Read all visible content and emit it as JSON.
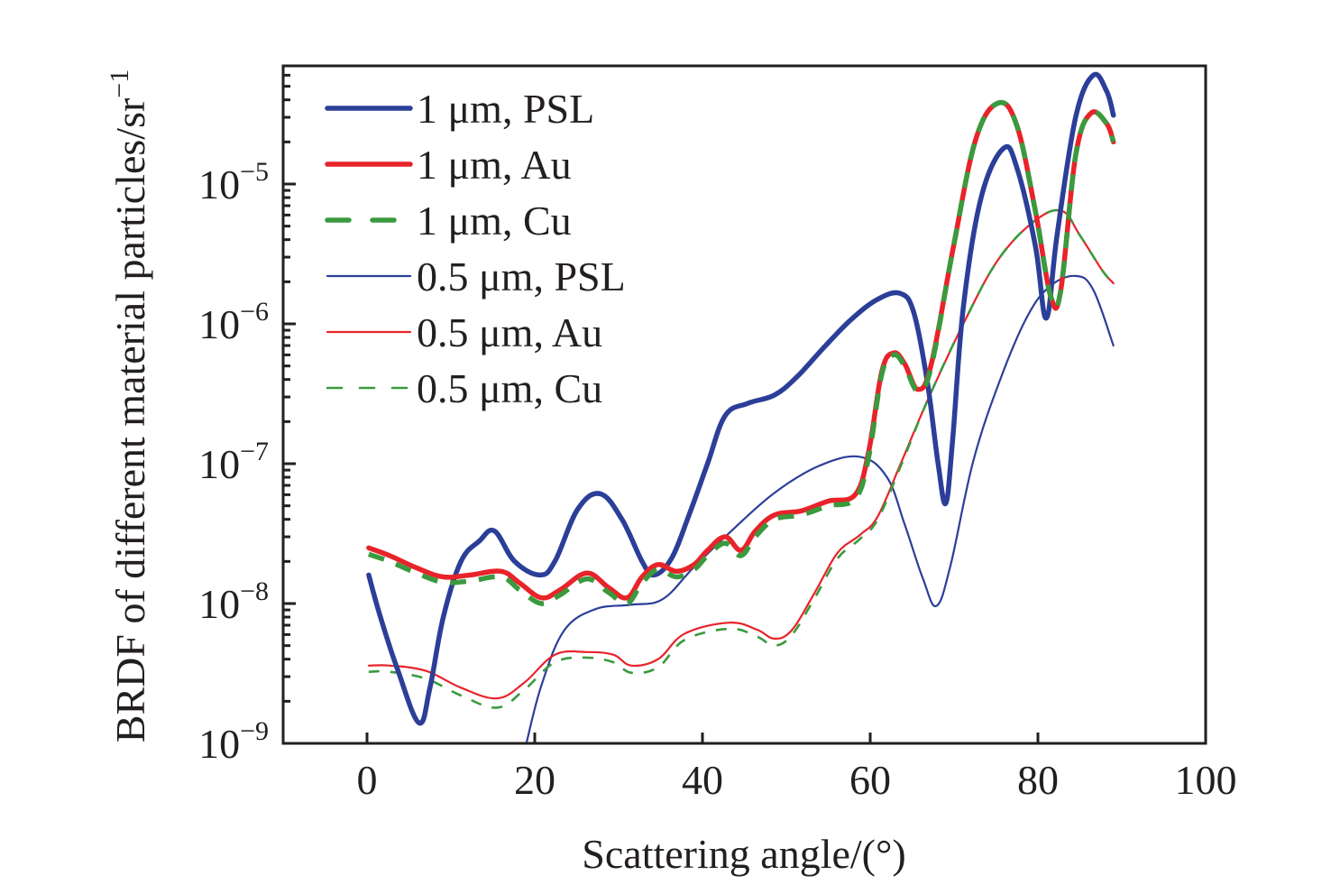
{
  "chart_data": {
    "type": "line",
    "title": "",
    "xlabel": "Scattering angle/(°)",
    "ylabel": "BRDF of different material particles/sr",
    "ylabel_superscript": "−1",
    "xlim": [
      -10,
      100
    ],
    "ylim": [
      1e-09,
      7e-05
    ],
    "yscale": "log",
    "grid": false,
    "legend_position": "top-left",
    "x_ticks": [
      {
        "value": 0,
        "label": "0"
      },
      {
        "value": 20,
        "label": "20"
      },
      {
        "value": 40,
        "label": "40"
      },
      {
        "value": 60,
        "label": "60"
      },
      {
        "value": 80,
        "label": "80"
      },
      {
        "value": 100,
        "label": "100"
      }
    ],
    "y_ticks": [
      {
        "value": 1e-09,
        "base": "10",
        "exp": "−9"
      },
      {
        "value": 1e-08,
        "base": "10",
        "exp": "−8"
      },
      {
        "value": 1e-07,
        "base": "10",
        "exp": "−7"
      },
      {
        "value": 1e-06,
        "base": "10",
        "exp": "−6"
      },
      {
        "value": 1e-05,
        "base": "10",
        "exp": "−5"
      }
    ],
    "series": [
      {
        "name": "1 μm, PSL",
        "color": "#2b3f98",
        "style": "solid-thick",
        "x": [
          0.2,
          1.6,
          3.7,
          6.2,
          7.5,
          9.1,
          11.2,
          13.4,
          15.2,
          17.6,
          20.6,
          22.4,
          25.1,
          27.8,
          30.4,
          32.8,
          34.2,
          36.3,
          38.4,
          40.6,
          42.7,
          45.4,
          48.6,
          51.3,
          54.5,
          57.7,
          60.9,
          63.6,
          65.2,
          66.8,
          68.1,
          69.0,
          69.8,
          71.1,
          73.2,
          75.9,
          77.5,
          79.7,
          81.0,
          82.3,
          84.5,
          86.6,
          88.2,
          89.0
        ],
        "y": [
          1.6e-08,
          8e-09,
          3.3e-09,
          1.4e-09,
          2.5e-09,
          8e-09,
          2e-08,
          2.8e-08,
          3.3e-08,
          2e-08,
          1.6e-08,
          2e-08,
          4.7e-08,
          6.1e-08,
          4e-08,
          2e-08,
          1.6e-08,
          2.1e-08,
          4.3e-08,
          1e-07,
          2.2e-07,
          2.7e-07,
          3.1e-07,
          4.2e-07,
          6.8e-07,
          1.07e-06,
          1.5e-06,
          1.65e-06,
          1.2e-06,
          3.9e-07,
          1e-07,
          5.2e-08,
          1.4e-07,
          1.3e-06,
          7.9e-06,
          1.8e-05,
          1.3e-05,
          3.6e-06,
          1.1e-06,
          4.4e-06,
          3e-05,
          6e-05,
          4.6e-05,
          3.1e-05
        ]
      },
      {
        "name": "1 μm, Au",
        "color": "#e8232a",
        "style": "solid-thick",
        "x": [
          0.2,
          2.7,
          5.9,
          9.1,
          12.3,
          16.0,
          18.2,
          20.8,
          23.0,
          26.2,
          28.8,
          31.0,
          32.8,
          34.7,
          36.9,
          39.0,
          40.6,
          42.7,
          44.6,
          46.3,
          48.6,
          51.8,
          55.0,
          58.2,
          59.8,
          61.4,
          62.8,
          64.1,
          65.7,
          67.3,
          69.9,
          72.6,
          75.3,
          77.5,
          79.7,
          81.5,
          82.7,
          84.5,
          86.3,
          88.2,
          89.0
        ],
        "y": [
          2.5e-08,
          2.2e-08,
          1.8e-08,
          1.55e-08,
          1.6e-08,
          1.7e-08,
          1.4e-08,
          1.1e-08,
          1.25e-08,
          1.65e-08,
          1.3e-08,
          1.1e-08,
          1.55e-08,
          1.9e-08,
          1.7e-08,
          1.9e-08,
          2.4e-08,
          3e-08,
          2.4e-08,
          3.3e-08,
          4.3e-08,
          4.6e-08,
          5.4e-08,
          6e-08,
          1.2e-07,
          4.6e-07,
          6.2e-07,
          5.2e-07,
          3.4e-07,
          5.2e-07,
          3.5e-06,
          2.1e-05,
          3.8e-05,
          2.6e-05,
          6.4e-06,
          1.6e-06,
          1.7e-06,
          1.6e-05,
          3.2e-05,
          2.7e-05,
          2e-05
        ]
      },
      {
        "name": "1 μm, Cu",
        "color": "#3a9a3e",
        "style": "dashed-thick",
        "x": [
          0.2,
          2.7,
          5.9,
          9.1,
          12.3,
          16.0,
          18.2,
          20.8,
          23.0,
          26.2,
          28.8,
          31.0,
          32.8,
          34.7,
          36.9,
          39.0,
          40.6,
          42.7,
          44.6,
          46.3,
          48.6,
          51.8,
          55.0,
          58.2,
          59.8,
          61.4,
          62.8,
          64.1,
          65.7,
          67.3,
          69.9,
          72.6,
          75.3,
          77.5,
          79.7,
          81.5,
          82.7,
          84.5,
          86.3,
          88.2,
          89.0
        ],
        "y": [
          2.25e-08,
          2e-08,
          1.65e-08,
          1.42e-08,
          1.45e-08,
          1.55e-08,
          1.25e-08,
          1e-08,
          1.15e-08,
          1.5e-08,
          1.2e-08,
          1e-08,
          1.4e-08,
          1.75e-08,
          1.55e-08,
          1.75e-08,
          2.2e-08,
          2.7e-08,
          2.2e-08,
          3e-08,
          4e-08,
          4.3e-08,
          5e-08,
          5.6e-08,
          1.1e-07,
          4.4e-07,
          6e-07,
          5e-07,
          3.3e-07,
          5e-07,
          3.5e-06,
          2.1e-05,
          3.8e-05,
          2.6e-05,
          6.4e-06,
          1.6e-06,
          1.7e-06,
          1.6e-05,
          3.2e-05,
          2.7e-05,
          2e-05
        ]
      },
      {
        "name": "0.5 μm, PSL",
        "color": "#2b3f98",
        "style": "solid-thin",
        "x": [
          19.0,
          20.8,
          23.5,
          27.2,
          31.4,
          35.2,
          38.9,
          43.2,
          48.6,
          54.0,
          58.8,
          62.0,
          64.1,
          66.3,
          67.9,
          69.6,
          72.3,
          75.5,
          78.7,
          81.4,
          84.5,
          86.6,
          89.0
        ],
        "y": [
          1e-09,
          2.6e-09,
          6.4e-09,
          9.1e-09,
          9.8e-09,
          1.07e-08,
          1.8e-08,
          3.2e-08,
          6.2e-08,
          9.7e-08,
          1.12e-07,
          8e-08,
          3.7e-08,
          1.5e-08,
          9.6e-09,
          1.9e-08,
          1.05e-07,
          4e-07,
          1.12e-06,
          1.85e-06,
          2.2e-06,
          1.75e-06,
          7e-07
        ]
      },
      {
        "name": "0.5 μm, Au",
        "color": "#e8232a",
        "style": "solid-thin",
        "x": [
          0.2,
          2.7,
          7.0,
          11.2,
          15.5,
          18.7,
          22.4,
          26.2,
          29.4,
          31.5,
          34.7,
          37.9,
          43.2,
          46.5,
          48.6,
          50.7,
          53.4,
          56.1,
          58.8,
          60.9,
          63.6,
          66.8,
          71.1,
          75.3,
          79.7,
          82.9,
          85.0,
          87.7,
          89.0
        ],
        "y": [
          3.6e-09,
          3.6e-09,
          3.3e-09,
          2.5e-09,
          2.1e-09,
          2.7e-09,
          4.3e-09,
          4.5e-09,
          4.3e-09,
          3.6e-09,
          4e-09,
          6.1e-09,
          7.3e-09,
          6.5e-09,
          5.6e-09,
          6.5e-09,
          1.2e-08,
          2.3e-08,
          3.1e-08,
          4.2e-08,
          9.9e-08,
          2.8e-07,
          1e-06,
          2.9e-06,
          5.5e-06,
          6.4e-06,
          4.3e-06,
          2.4e-06,
          1.95e-06
        ]
      },
      {
        "name": "0.5 μm, Cu",
        "color": "#3a9a3e",
        "style": "dashed-thin",
        "x": [
          0.2,
          2.7,
          7.0,
          11.2,
          15.5,
          18.7,
          22.4,
          26.2,
          29.4,
          31.5,
          34.7,
          37.9,
          43.2,
          46.5,
          48.6,
          50.7,
          53.4,
          56.1,
          58.8,
          60.9,
          63.6,
          66.8,
          71.1,
          75.3,
          79.7,
          82.9,
          85.0,
          87.7,
          89.0
        ],
        "y": [
          3.25e-09,
          3.25e-09,
          2.9e-09,
          2.2e-09,
          1.8e-09,
          2.4e-09,
          3.8e-09,
          4.1e-09,
          3.8e-09,
          3.2e-09,
          3.5e-09,
          5.5e-09,
          6.6e-09,
          5.8e-09,
          5e-09,
          6e-09,
          1.1e-08,
          2.1e-08,
          2.9e-08,
          4e-08,
          9.5e-08,
          2.8e-07,
          1e-06,
          2.9e-06,
          5.5e-06,
          6.4e-06,
          4.3e-06,
          2.4e-06,
          1.95e-06
        ]
      }
    ]
  }
}
